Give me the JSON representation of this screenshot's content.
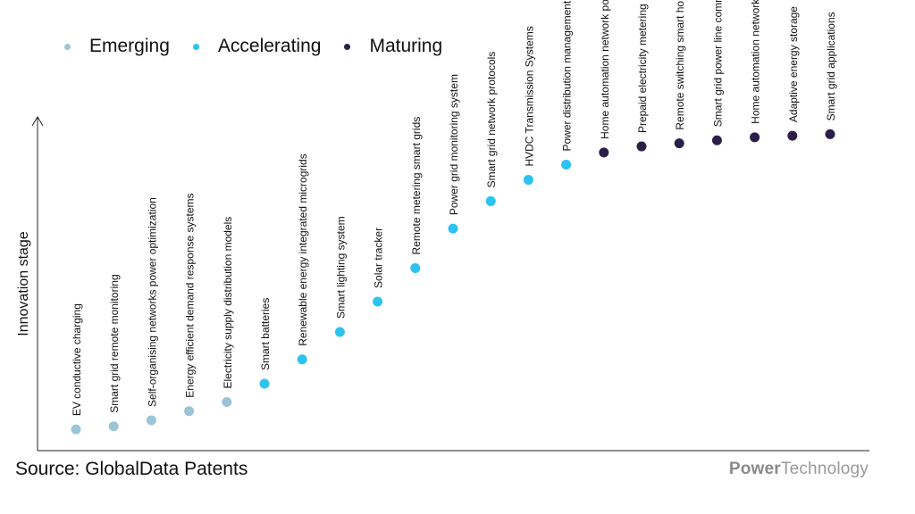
{
  "legend": [
    {
      "label": "Emerging",
      "color": "#9bc5d7"
    },
    {
      "label": "Accelerating",
      "color": "#2cc3f0"
    },
    {
      "label": "Maturing",
      "color": "#2b1f4a"
    }
  ],
  "source": "Source: GlobalData Patents",
  "brand": {
    "part1": "Power",
    "part2": "Technology"
  },
  "chart_data": {
    "type": "scatter",
    "title": "",
    "xlabel": "",
    "ylabel": "Innovation stage",
    "ylim": [
      0,
      100
    ],
    "grid": false,
    "legend_position": "top-left",
    "points": [
      {
        "label": "EV conductive charging",
        "stage": "Emerging",
        "y": 2
      },
      {
        "label": "Smart grid remote monitoring",
        "stage": "Emerging",
        "y": 3
      },
      {
        "label": "Self-organising networks power optimization",
        "stage": "Emerging",
        "y": 5
      },
      {
        "label": "Energy efficient demand response systems",
        "stage": "Emerging",
        "y": 8
      },
      {
        "label": "Electricity supply distribution models",
        "stage": "Emerging",
        "y": 11
      },
      {
        "label": "Smart batteries",
        "stage": "Accelerating",
        "y": 17
      },
      {
        "label": "Renewable energy integrated microgrids",
        "stage": "Accelerating",
        "y": 25
      },
      {
        "label": "Smart lighting system",
        "stage": "Accelerating",
        "y": 34
      },
      {
        "label": "Solar tracker",
        "stage": "Accelerating",
        "y": 44
      },
      {
        "label": "Remote metering smart grids",
        "stage": "Accelerating",
        "y": 55
      },
      {
        "label": "Power grid monitoring system",
        "stage": "Accelerating",
        "y": 68
      },
      {
        "label": "Smart grid network protocols",
        "stage": "Accelerating",
        "y": 77
      },
      {
        "label": "HVDC Transmission Systems",
        "stage": "Accelerating",
        "y": 84
      },
      {
        "label": "Power distribution management applications",
        "stage": "Accelerating",
        "y": 89
      },
      {
        "label": "Home automation network power management",
        "stage": "Maturing",
        "y": 93
      },
      {
        "label": "Prepaid electricity metering",
        "stage": "Maturing",
        "y": 95
      },
      {
        "label": "Remote switching smart home applications",
        "stage": "Maturing",
        "y": 96
      },
      {
        "label": "Smart grid power line communication",
        "stage": "Maturing",
        "y": 97
      },
      {
        "label": "Home automation networks",
        "stage": "Maturing",
        "y": 98
      },
      {
        "label": "Adaptive energy storage",
        "stage": "Maturing",
        "y": 98.5
      },
      {
        "label": "Smart grid applications",
        "stage": "Maturing",
        "y": 99
      }
    ]
  }
}
